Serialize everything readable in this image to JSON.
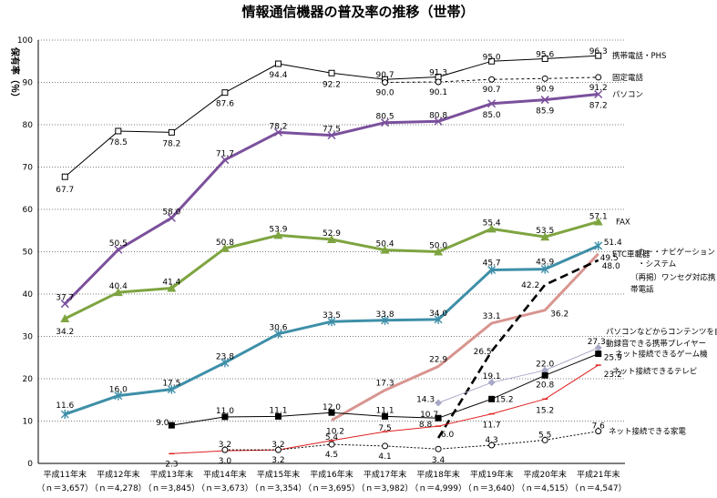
{
  "chart_data": {
    "type": "line",
    "title": "情報通信機器の普及率の推移（世帯）",
    "ylabel": "保有率（％）",
    "xlabel": "",
    "ylim": [
      0,
      100
    ],
    "yticks": [
      "0",
      "10",
      "20",
      "30",
      "40",
      "50",
      "60",
      "70",
      "80",
      "90",
      "100"
    ],
    "categories": [
      "平成11年末",
      "平成12年末",
      "平成13年末",
      "平成14年末",
      "平成15年末",
      "平成16年末",
      "平成17年末",
      "平成18年末",
      "平成19年末",
      "平成20年末",
      "平成21年末"
    ],
    "samples": [
      "（ｎ＝3,657）",
      "（ｎ＝4,278）",
      "（ｎ＝3,845）",
      "（ｎ＝3,673）",
      "（ｎ＝3,354）",
      "（ｎ＝3,695）",
      "（ｎ＝3,982）",
      "（ｎ＝4,999）",
      "（ｎ＝3,640）",
      "（ｎ＝4,515）",
      "（ｎ＝4,547）"
    ],
    "grid": "horizontal",
    "series": [
      {
        "name": "携帯電話・PHS",
        "color": "#000000",
        "marker": "square-open",
        "values": [
          67.7,
          78.5,
          78.2,
          87.6,
          94.4,
          92.2,
          90.7,
          91.3,
          95.0,
          95.6,
          96.3
        ]
      },
      {
        "name": "固定電話",
        "color": "#000000",
        "marker": "circle-open",
        "dashed": true,
        "values": [
          null,
          null,
          null,
          null,
          null,
          null,
          90.0,
          90.1,
          90.7,
          90.9,
          91.2
        ]
      },
      {
        "name": "パソコン",
        "color": "#7b509c",
        "marker": "x",
        "values": [
          37.7,
          50.5,
          58.0,
          71.7,
          78.2,
          77.5,
          80.5,
          80.8,
          85.0,
          85.9,
          87.2
        ]
      },
      {
        "name": "FAX",
        "color": "#7ea440",
        "marker": "triangle",
        "values": [
          34.2,
          40.4,
          41.4,
          50.8,
          53.9,
          52.9,
          50.4,
          50.0,
          55.4,
          53.5,
          57.1
        ]
      },
      {
        "name": "カー・ナビゲーション・システム",
        "label_lines": [
          "カー・ナビゲーション",
          "・システム"
        ],
        "color": "#3e8fa8",
        "marker": "asterisk",
        "values": [
          11.6,
          16.0,
          17.5,
          23.8,
          30.6,
          33.5,
          33.8,
          34.0,
          45.7,
          45.9,
          51.4
        ]
      },
      {
        "name": "ETC車載器",
        "color": "#d89590",
        "marker": "none",
        "values": [
          null,
          null,
          null,
          null,
          null,
          10.2,
          17.3,
          22.9,
          33.1,
          36.2,
          49.5
        ]
      },
      {
        "name": "（再掲）ワンセグ対応携帯電話",
        "label_lines": [
          "（再掲）ワンセグ対応携",
          "帯電話"
        ],
        "color": "#000000",
        "marker": "none",
        "bold_dashed": true,
        "values": [
          null,
          null,
          null,
          null,
          null,
          null,
          null,
          6.0,
          26.5,
          42.2,
          48.0
        ]
      },
      {
        "name": "パソコンなどからコンテンツを自動録音できる携帯プレイヤー",
        "label_lines": [
          "パソコンなどからコンテンツを自",
          "動録音できる携帯プレイヤー"
        ],
        "color": "#a8a8c8",
        "marker": "diamond",
        "values": [
          null,
          null,
          null,
          null,
          null,
          null,
          null,
          14.3,
          19.1,
          22.0,
          27.3
        ]
      },
      {
        "name": "ネット接続できるゲーム機",
        "color": "#000000",
        "marker": "square",
        "values": [
          null,
          null,
          9.0,
          11.0,
          11.1,
          12.0,
          11.1,
          10.7,
          15.2,
          20.8,
          25.9
        ]
      },
      {
        "name": "ネット接続できるテレビ",
        "color": "#e02020",
        "marker": "dash",
        "values": [
          null,
          null,
          2.3,
          3.0,
          3.2,
          5.4,
          7.5,
          8.8,
          11.7,
          15.2,
          23.2
        ]
      },
      {
        "name": "ネット接続できる家電",
        "color": "#000000",
        "marker": "circle-open",
        "dotted": true,
        "values": [
          null,
          null,
          null,
          3.2,
          3.2,
          4.5,
          4.1,
          3.4,
          4.3,
          5.5,
          7.6
        ]
      }
    ],
    "data_labels": [
      [
        "67.7",
        "78.5",
        "78.2",
        "87.6",
        "94.4",
        "92.2",
        "90.7",
        "91.3",
        "95.0",
        "95.6",
        "96.3"
      ],
      [
        null,
        null,
        null,
        null,
        null,
        null,
        "90.0",
        "90.1",
        "90.7",
        "90.9",
        "91.2"
      ],
      [
        "37.7",
        "50.5",
        "58.0",
        "71.7",
        "78.2",
        "77.5",
        "80.5",
        "80.8",
        "85.0",
        "85.9",
        "87.2"
      ],
      [
        "34.2",
        "40.4",
        "41.4",
        "50.8",
        "53.9",
        "52.9",
        "50.4",
        "50.0",
        "55.4",
        "53.5",
        "57.1"
      ],
      [
        "11.6",
        "16.0",
        "17.5",
        "23.8",
        "30.6",
        "33.5",
        "33.8",
        "34.0",
        "45.7",
        "45.9",
        "51.4"
      ],
      [
        null,
        null,
        null,
        null,
        null,
        "10.2",
        "17.3",
        "22.9",
        "33.1",
        "36.2",
        "49.5"
      ],
      [
        null,
        null,
        null,
        null,
        null,
        null,
        null,
        "6.0",
        "26.5",
        "42.2",
        "48.0"
      ],
      [
        null,
        null,
        null,
        null,
        null,
        null,
        null,
        "14.3",
        "19.1",
        "22.0",
        "27.3"
      ],
      [
        null,
        null,
        "9.0",
        "11.0",
        "11.1",
        "12.0",
        "11.1",
        "10.7",
        "15.2",
        "20.8",
        "25.9"
      ],
      [
        null,
        null,
        "2.3",
        "3.0",
        "3.2",
        "5.4",
        "7.5",
        "8.8",
        "11.7",
        "15.2",
        "23.2"
      ],
      [
        null,
        null,
        null,
        "3.2",
        "3.2",
        "4.5",
        "4.1",
        "3.4",
        "4.3",
        "5.5",
        "7.6"
      ]
    ]
  }
}
